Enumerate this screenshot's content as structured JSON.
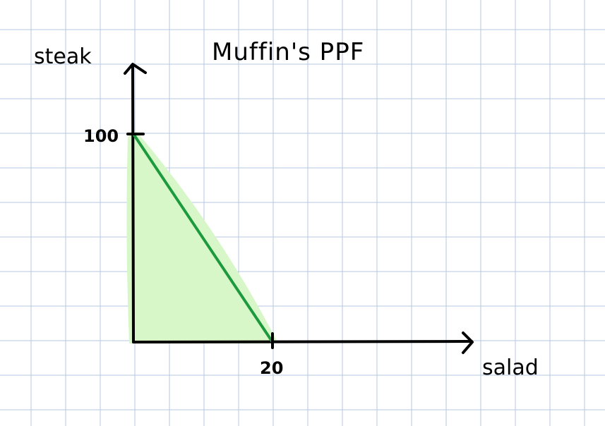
{
  "chart_data": {
    "type": "area",
    "title": "Muffin's PPF",
    "xlabel": "salad",
    "ylabel": "steak",
    "x_ticks": [
      "20"
    ],
    "y_ticks": [
      "100"
    ],
    "series": [
      {
        "x": [
          0,
          20
        ],
        "y": [
          100,
          0
        ]
      }
    ],
    "xlim": [
      0,
      49
    ],
    "ylim": [
      0,
      100
    ],
    "grid": true,
    "colors": {
      "line": "#1e9a3e",
      "fill": "#d8f7c8",
      "grid": "#b7c7e0",
      "axis": "#000000"
    }
  }
}
